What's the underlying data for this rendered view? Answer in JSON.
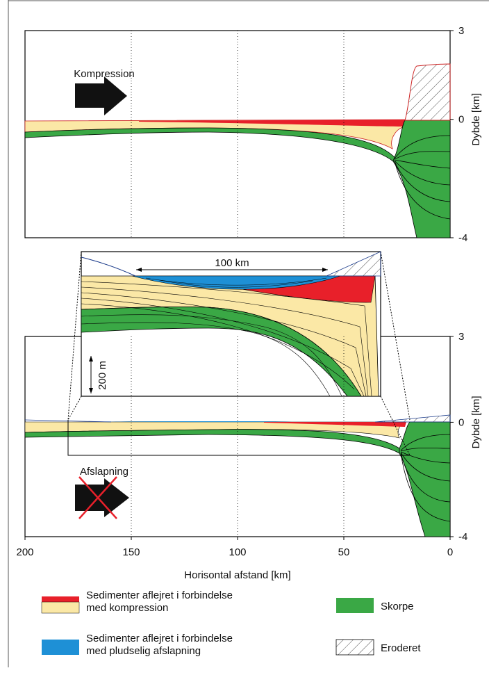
{
  "panels": [
    {
      "label": "Kompression",
      "y_axis_label": "Dybde [km]",
      "ylim": [
        3,
        -4
      ],
      "yticks": [
        3,
        0,
        -4
      ]
    },
    {
      "label": "Afslapning",
      "y_axis_label": "Dybde [km]",
      "ylim": [
        3,
        -4
      ],
      "yticks": [
        3,
        0,
        -4
      ]
    }
  ],
  "x_axis": {
    "label": "Horisontal afstand [km]",
    "xlim": [
      200,
      0
    ],
    "ticks": [
      200,
      150,
      100,
      50,
      0
    ],
    "grid_ticks": [
      150,
      100,
      50
    ]
  },
  "inset": {
    "width_label": "100 km",
    "height_label": "200 m"
  },
  "legend": [
    {
      "lines": [
        "Sedimenter aflejret i forbindelse",
        "med kompression"
      ]
    },
    {
      "lines": [
        "Skorpe"
      ]
    },
    {
      "lines": [
        "Sedimenter aflejret i forbindelse",
        "med pludselig afslapning"
      ]
    },
    {
      "lines": [
        "Eroderet"
      ]
    }
  ]
}
